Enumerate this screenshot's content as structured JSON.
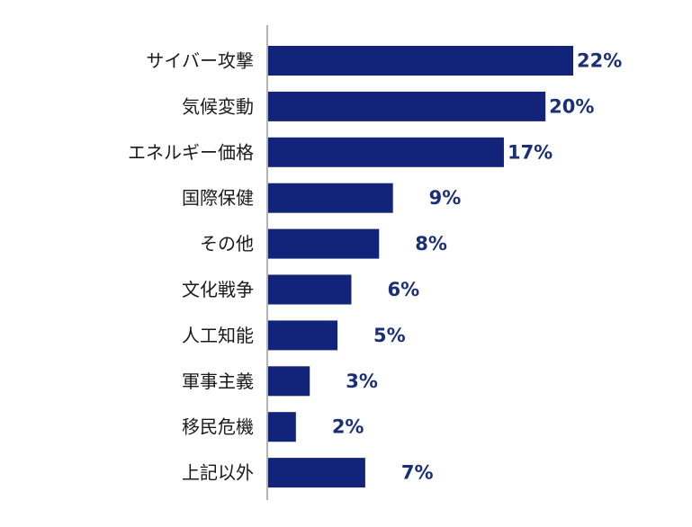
{
  "chart_data": {
    "type": "bar",
    "orientation": "horizontal",
    "title": "",
    "xlabel": "",
    "ylabel": "",
    "categories": [
      "サイバー攻撃",
      "気候変動",
      "エネルギー価格",
      "国際保健",
      "その他",
      "文化戦争",
      "人工知能",
      "軍事主義",
      "移民危機",
      "上記以外"
    ],
    "values": [
      22,
      20,
      17,
      9,
      8,
      6,
      5,
      3,
      2,
      7
    ],
    "value_labels": [
      "22%",
      "20%",
      "17%",
      "9%",
      "8%",
      "6%",
      "5%",
      "3%",
      "2%",
      "7%"
    ],
    "unit": "%",
    "xlim": [
      0,
      22
    ],
    "grid": false,
    "legend": "none",
    "colors": {
      "bar": "#12237a",
      "value_text": "#1b2f78",
      "axis": "#9a9a9a"
    }
  }
}
